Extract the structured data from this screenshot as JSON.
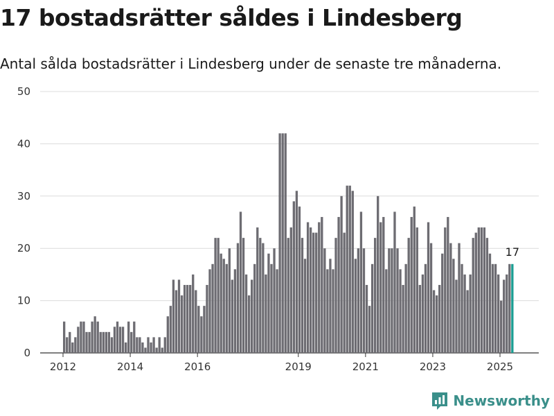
{
  "header": {
    "title": "17 bostadsrätter såldes i Lindesberg",
    "subtitle": "Antal sålda bostadsrätter i Lindesberg under de senaste tre månaderna."
  },
  "brand": {
    "name": "Newsworthy",
    "icon": "newsworthy-logo-icon",
    "color": "#3a8f8a"
  },
  "colors": {
    "bar": "#6d6c72",
    "highlight": "#1a9e93",
    "grid": "#dcdcdc"
  },
  "chart_data": {
    "type": "bar",
    "title": "17 bostadsrätter såldes i Lindesberg",
    "subtitle": "Antal sålda bostadsrätter i Lindesberg under de senaste tre månaderna.",
    "x_ticks": [
      "2012",
      "2014",
      "2016",
      "2019",
      "2021",
      "2023",
      "2025"
    ],
    "x_tick_years": [
      2012,
      2014,
      2016,
      2019,
      2021,
      2023,
      2025
    ],
    "y_ticks": [
      0,
      10,
      20,
      30,
      40,
      50
    ],
    "ylim": [
      0,
      50
    ],
    "grid": true,
    "start_year": 2012,
    "highlight_label": "17",
    "values": [
      6,
      3,
      4,
      2,
      3,
      5,
      6,
      6,
      4,
      4,
      6,
      7,
      6,
      4,
      4,
      4,
      4,
      3,
      5,
      6,
      5,
      5,
      2,
      6,
      4,
      6,
      3,
      3,
      2,
      1,
      3,
      2,
      3,
      1,
      3,
      1,
      3,
      7,
      9,
      14,
      12,
      14,
      11,
      13,
      13,
      13,
      15,
      12,
      9,
      7,
      9,
      13,
      16,
      17,
      22,
      22,
      19,
      18,
      17,
      20,
      14,
      16,
      21,
      27,
      22,
      15,
      11,
      14,
      17,
      24,
      22,
      21,
      15,
      19,
      17,
      20,
      16,
      42,
      42,
      42,
      22,
      24,
      29,
      31,
      28,
      22,
      18,
      25,
      24,
      23,
      23,
      25,
      26,
      20,
      16,
      18,
      16,
      22,
      26,
      30,
      23,
      32,
      32,
      31,
      18,
      20,
      27,
      20,
      13,
      9,
      17,
      22,
      30,
      25,
      26,
      16,
      20,
      20,
      27,
      20,
      16,
      13,
      17,
      22,
      26,
      28,
      24,
      13,
      15,
      17,
      25,
      21,
      12,
      11,
      13,
      19,
      24,
      26,
      21,
      18,
      14,
      21,
      17,
      15,
      12,
      15,
      22,
      23,
      24,
      24,
      24,
      22,
      19,
      17,
      17,
      15,
      10,
      14,
      15,
      17,
      17
    ]
  }
}
